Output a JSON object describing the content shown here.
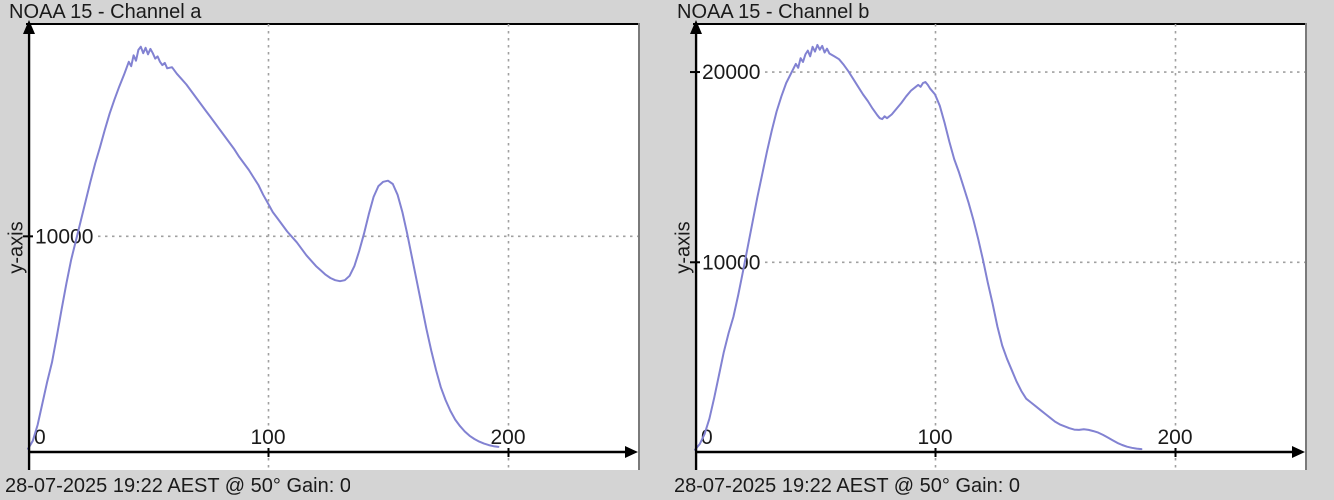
{
  "colors": {
    "background": "#d4d4d4",
    "plot_bg": "#ffffff",
    "curve": "#8282d2",
    "grid": "#a0a0a0",
    "axis": "#000000",
    "text": "#1a1a1a",
    "panel_border": "#7a7a7a"
  },
  "chart_data": [
    {
      "type": "line",
      "title": "NOAA 15 - Channel a",
      "ylabel": "y-axis",
      "xlabel": "",
      "caption": "28-07-2025 19:22 AEST @ 50° Gain: 0;",
      "xlim": [
        0,
        255
      ],
      "ylim": [
        0,
        19800
      ],
      "xticks": [
        0,
        100,
        200
      ],
      "yticks": [
        10000
      ],
      "grid": "dotted",
      "points": [
        [
          0,
          150
        ],
        [
          2,
          520
        ],
        [
          4,
          1250
        ],
        [
          6,
          2250
        ],
        [
          8,
          3250
        ],
        [
          10,
          4150
        ],
        [
          12,
          5350
        ],
        [
          14,
          6600
        ],
        [
          16,
          7800
        ],
        [
          18,
          8900
        ],
        [
          20,
          9800
        ],
        [
          22,
          10700
        ],
        [
          24,
          11600
        ],
        [
          26,
          12500
        ],
        [
          28,
          13350
        ],
        [
          30,
          14100
        ],
        [
          32,
          14900
        ],
        [
          34,
          15650
        ],
        [
          36,
          16300
        ],
        [
          38,
          16900
        ],
        [
          40,
          17450
        ],
        [
          42,
          18050
        ],
        [
          43,
          17850
        ],
        [
          44,
          18350
        ],
        [
          45,
          18100
        ],
        [
          46,
          18600
        ],
        [
          47,
          18750
        ],
        [
          48,
          18450
        ],
        [
          49,
          18700
        ],
        [
          50,
          18400
        ],
        [
          51,
          18650
        ],
        [
          52,
          18450
        ],
        [
          53,
          18200
        ],
        [
          54,
          18300
        ],
        [
          55,
          18050
        ],
        [
          56,
          17900
        ],
        [
          57,
          18000
        ],
        [
          58,
          17750
        ],
        [
          60,
          17800
        ],
        [
          62,
          17500
        ],
        [
          64,
          17250
        ],
        [
          66,
          17000
        ],
        [
          68,
          16700
        ],
        [
          70,
          16400
        ],
        [
          72,
          16100
        ],
        [
          74,
          15800
        ],
        [
          76,
          15500
        ],
        [
          78,
          15200
        ],
        [
          80,
          14900
        ],
        [
          82,
          14600
        ],
        [
          84,
          14300
        ],
        [
          86,
          14000
        ],
        [
          88,
          13650
        ],
        [
          90,
          13350
        ],
        [
          92,
          13050
        ],
        [
          94,
          12700
        ],
        [
          96,
          12350
        ],
        [
          98,
          11900
        ],
        [
          100,
          11500
        ],
        [
          102,
          11100
        ],
        [
          104,
          10800
        ],
        [
          106,
          10500
        ],
        [
          108,
          10200
        ],
        [
          110,
          9950
        ],
        [
          112,
          9700
        ],
        [
          114,
          9400
        ],
        [
          116,
          9100
        ],
        [
          118,
          8850
        ],
        [
          120,
          8600
        ],
        [
          122,
          8400
        ],
        [
          124,
          8200
        ],
        [
          126,
          8050
        ],
        [
          128,
          7950
        ],
        [
          130,
          7900
        ],
        [
          132,
          7950
        ],
        [
          134,
          8150
        ],
        [
          136,
          8600
        ],
        [
          138,
          9300
        ],
        [
          140,
          10100
        ],
        [
          142,
          11000
        ],
        [
          144,
          11800
        ],
        [
          146,
          12300
        ],
        [
          148,
          12500
        ],
        [
          150,
          12550
        ],
        [
          152,
          12400
        ],
        [
          154,
          11900
        ],
        [
          156,
          11100
        ],
        [
          158,
          10100
        ],
        [
          160,
          9000
        ],
        [
          162,
          7900
        ],
        [
          164,
          6800
        ],
        [
          166,
          5700
        ],
        [
          168,
          4700
        ],
        [
          170,
          3800
        ],
        [
          172,
          3000
        ],
        [
          174,
          2400
        ],
        [
          176,
          1900
        ],
        [
          178,
          1500
        ],
        [
          180,
          1200
        ],
        [
          182,
          950
        ],
        [
          184,
          750
        ],
        [
          186,
          600
        ],
        [
          188,
          480
        ],
        [
          190,
          390
        ],
        [
          192,
          320
        ],
        [
          194,
          270
        ],
        [
          196,
          235
        ]
      ]
    },
    {
      "type": "line",
      "title": "NOAA 15 - Channel b",
      "ylabel": "y-axis",
      "xlabel": "",
      "caption": "28-07-2025 19:22 AEST @ 50° Gain: 0;",
      "xlim": [
        0,
        255
      ],
      "ylim": [
        0,
        22500
      ],
      "xticks": [
        0,
        100,
        200
      ],
      "yticks": [
        10000,
        20000
      ],
      "grid": "dotted",
      "points": [
        [
          0,
          120
        ],
        [
          2,
          420
        ],
        [
          4,
          950
        ],
        [
          6,
          1750
        ],
        [
          8,
          2850
        ],
        [
          10,
          4050
        ],
        [
          12,
          5250
        ],
        [
          14,
          6250
        ],
        [
          16,
          7100
        ],
        [
          18,
          8250
        ],
        [
          20,
          9500
        ],
        [
          22,
          10800
        ],
        [
          24,
          12100
        ],
        [
          26,
          13400
        ],
        [
          28,
          14600
        ],
        [
          30,
          15800
        ],
        [
          32,
          16900
        ],
        [
          34,
          17900
        ],
        [
          36,
          18700
        ],
        [
          38,
          19400
        ],
        [
          40,
          19900
        ],
        [
          42,
          20400
        ],
        [
          43,
          20200
        ],
        [
          44,
          20700
        ],
        [
          45,
          20500
        ],
        [
          46,
          20900
        ],
        [
          47,
          21100
        ],
        [
          48,
          20800
        ],
        [
          49,
          21300
        ],
        [
          50,
          21050
        ],
        [
          51,
          21400
        ],
        [
          52,
          21150
        ],
        [
          53,
          21350
        ],
        [
          54,
          21000
        ],
        [
          55,
          21200
        ],
        [
          56,
          20950
        ],
        [
          58,
          20800
        ],
        [
          60,
          20650
        ],
        [
          62,
          20350
        ],
        [
          64,
          20000
        ],
        [
          66,
          19600
        ],
        [
          68,
          19200
        ],
        [
          70,
          18800
        ],
        [
          72,
          18450
        ],
        [
          74,
          18050
        ],
        [
          76,
          17700
        ],
        [
          77,
          17550
        ],
        [
          78,
          17500
        ],
        [
          79,
          17650
        ],
        [
          80,
          17550
        ],
        [
          82,
          17750
        ],
        [
          84,
          18050
        ],
        [
          86,
          18350
        ],
        [
          88,
          18700
        ],
        [
          90,
          19000
        ],
        [
          92,
          19200
        ],
        [
          93,
          19300
        ],
        [
          94,
          19200
        ],
        [
          95,
          19400
        ],
        [
          96,
          19450
        ],
        [
          97,
          19300
        ],
        [
          98,
          19100
        ],
        [
          100,
          18800
        ],
        [
          102,
          18200
        ],
        [
          104,
          17300
        ],
        [
          106,
          16300
        ],
        [
          108,
          15400
        ],
        [
          110,
          14700
        ],
        [
          112,
          13900
        ],
        [
          114,
          13100
        ],
        [
          116,
          12200
        ],
        [
          118,
          11200
        ],
        [
          120,
          10100
        ],
        [
          122,
          8900
        ],
        [
          124,
          7800
        ],
        [
          126,
          6600
        ],
        [
          128,
          5600
        ],
        [
          130,
          4900
        ],
        [
          132,
          4300
        ],
        [
          134,
          3700
        ],
        [
          136,
          3200
        ],
        [
          138,
          2800
        ],
        [
          140,
          2600
        ],
        [
          142,
          2400
        ],
        [
          144,
          2200
        ],
        [
          146,
          2000
        ],
        [
          148,
          1800
        ],
        [
          150,
          1600
        ],
        [
          152,
          1450
        ],
        [
          154,
          1350
        ],
        [
          156,
          1250
        ],
        [
          158,
          1180
        ],
        [
          160,
          1160
        ],
        [
          162,
          1200
        ],
        [
          164,
          1160
        ],
        [
          166,
          1100
        ],
        [
          168,
          1020
        ],
        [
          170,
          900
        ],
        [
          172,
          760
        ],
        [
          174,
          620
        ],
        [
          176,
          480
        ],
        [
          178,
          370
        ],
        [
          180,
          280
        ],
        [
          182,
          220
        ],
        [
          184,
          180
        ],
        [
          186,
          155
        ]
      ]
    }
  ]
}
